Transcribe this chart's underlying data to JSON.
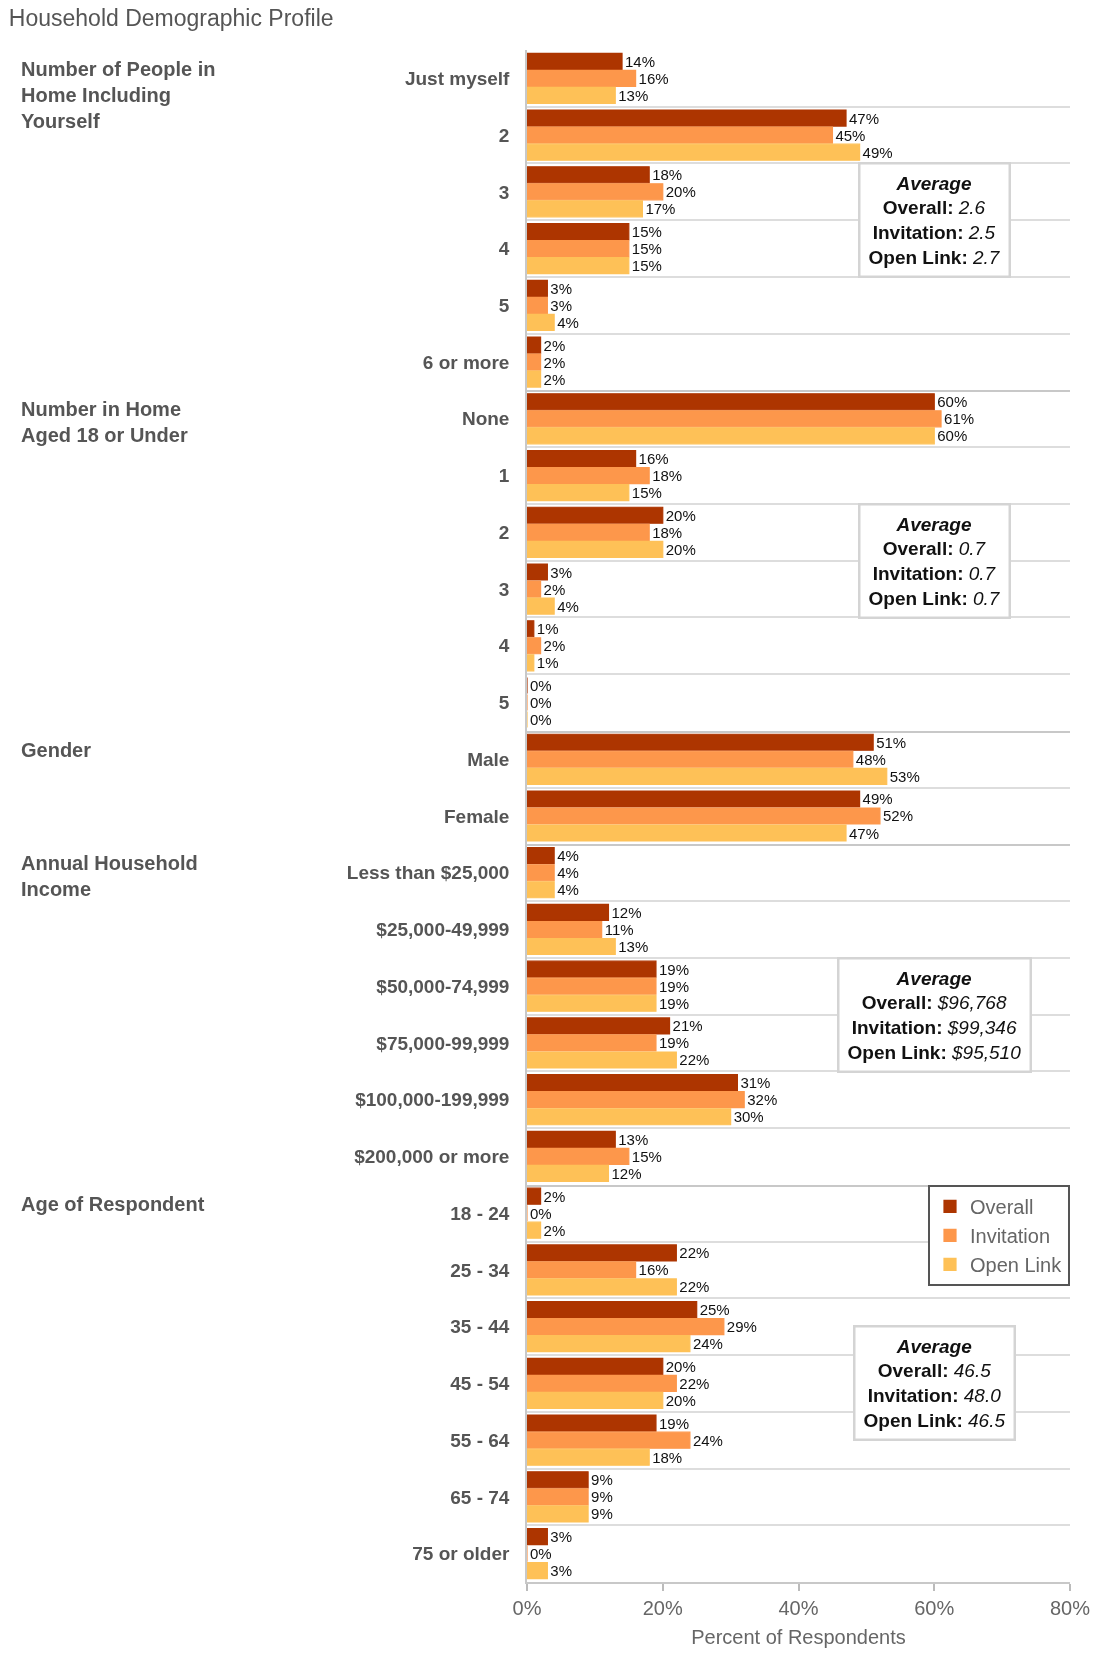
{
  "chart_data": [
    {
      "type": "bar",
      "orientation": "horizontal",
      "title": "Household Demographic Profile",
      "ylabel": "Number of People in Home Including Yourself",
      "categories": [
        "Just myself",
        "2",
        "3",
        "4",
        "5",
        "6 or more"
      ],
      "series": [
        {
          "color": "#ad3500",
          "values": [
            14,
            47,
            18,
            15,
            3,
            2
          ],
          "value_labels": [
            "14%",
            "47%",
            "18%",
            "15%",
            "3%",
            "2%"
          ]
        },
        {
          "color": "#fd974b",
          "values": [
            16,
            45,
            20,
            15,
            3,
            2
          ],
          "value_labels": [
            "16%",
            "45%",
            "20%",
            "15%",
            "3%",
            "2%"
          ]
        },
        {
          "color": "#fec157",
          "values": [
            13,
            49,
            17,
            15,
            4,
            2
          ],
          "value_labels": [
            "13%",
            "49%",
            "17%",
            "15%",
            "4%",
            "2%"
          ]
        }
      ],
      "xlim": [
        0,
        80
      ],
      "tick_labels": "y",
      "grid": "y",
      "annotations": [
        "Average\nOverall: 2.6\nInvitation: 2.5\nOpen Link: 2.7"
      ]
    },
    {
      "type": "bar",
      "orientation": "horizontal",
      "ylabel": "Number in Home Aged 18 or Under",
      "categories": [
        "None",
        "1",
        "2",
        "3",
        "4",
        "5"
      ],
      "series": [
        {
          "color": "#ad3500",
          "values": [
            60,
            16,
            20,
            3,
            1,
            0
          ],
          "value_labels": [
            "60%",
            "16%",
            "20%",
            "3%",
            "1%",
            "0%"
          ]
        },
        {
          "color": "#fd974b",
          "values": [
            61,
            18,
            18,
            2,
            2,
            0
          ],
          "value_labels": [
            "61%",
            "18%",
            "18%",
            "2%",
            "2%",
            "0%"
          ]
        },
        {
          "color": "#fec157",
          "values": [
            60,
            15,
            20,
            4,
            1,
            0
          ],
          "value_labels": [
            "60%",
            "15%",
            "20%",
            "4%",
            "1%",
            "0%"
          ]
        }
      ],
      "xlim": [
        0,
        80
      ],
      "tick_labels": "y",
      "grid": "y",
      "annotations": [
        "Average\nOverall: 0.7\nInvitation: 0.7\nOpen Link: 0.7"
      ]
    },
    {
      "type": "bar",
      "orientation": "horizontal",
      "ylabel": "Gender",
      "categories": [
        "Male",
        "Female"
      ],
      "series": [
        {
          "color": "#ad3500",
          "values": [
            51,
            49
          ],
          "value_labels": [
            "51%",
            "49%"
          ]
        },
        {
          "color": "#fd974b",
          "values": [
            48,
            52
          ],
          "value_labels": [
            "48%",
            "52%"
          ]
        },
        {
          "color": "#fec157",
          "values": [
            53,
            47
          ],
          "value_labels": [
            "53%",
            "47%"
          ]
        }
      ],
      "xlim": [
        0,
        80
      ],
      "tick_labels": "y",
      "grid": "y"
    },
    {
      "type": "bar",
      "orientation": "horizontal",
      "ylabel": "Annual Household Income",
      "categories": [
        "Less than $25,000",
        "$25,000-49,999",
        "$50,000-74,999",
        "$75,000-99,999",
        "$100,000-199,999",
        "$200,000 or more"
      ],
      "series": [
        {
          "color": "#ad3500",
          "values": [
            4,
            12,
            19,
            21,
            31,
            13
          ],
          "value_labels": [
            "4%",
            "12%",
            "19%",
            "21%",
            "31%",
            "13%"
          ]
        },
        {
          "color": "#fd974b",
          "values": [
            4,
            11,
            19,
            19,
            32,
            15
          ],
          "value_labels": [
            "4%",
            "11%",
            "19%",
            "19%",
            "32%",
            "15%"
          ]
        },
        {
          "color": "#fec157",
          "values": [
            4,
            13,
            19,
            22,
            30,
            12
          ],
          "value_labels": [
            "4%",
            "13%",
            "19%",
            "22%",
            "30%",
            "12%"
          ]
        }
      ],
      "xlim": [
        0,
        80
      ],
      "tick_labels": "y",
      "grid": "y",
      "annotations": [
        "Average\nOverall: $96,768\nInvitation: $99,346\nOpen Link: $95,510"
      ]
    },
    {
      "type": "bar",
      "orientation": "horizontal",
      "ylabel": "Age of Respondent",
      "xlabel": "Percent of Respondents",
      "categories": [
        "18 - 24",
        "25 - 34",
        "35 - 44",
        "45 - 54",
        "55 - 64",
        "65 - 74",
        "75 or older"
      ],
      "series": [
        {
          "name": "Overall",
          "color": "#ad3500",
          "values": [
            2,
            22,
            25,
            20,
            19,
            9,
            3
          ],
          "value_labels": [
            "2%",
            "22%",
            "25%",
            "20%",
            "19%",
            "9%",
            "3%"
          ]
        },
        {
          "name": "Invitation",
          "color": "#fd974b",
          "values": [
            0,
            16,
            29,
            22,
            24,
            9,
            0
          ],
          "value_labels": [
            "0%",
            "16%",
            "29%",
            "22%",
            "24%",
            "9%",
            "0%"
          ]
        },
        {
          "name": "Open Link",
          "color": "#fec157",
          "values": [
            2,
            22,
            24,
            20,
            18,
            9,
            3
          ],
          "value_labels": [
            "2%",
            "22%",
            "24%",
            "20%",
            "18%",
            "9%",
            "3%"
          ]
        }
      ],
      "xlim": [
        0,
        80
      ],
      "xticks": [
        {
          "value": 0,
          "label": "0%"
        },
        {
          "value": 20,
          "label": "20%"
        },
        {
          "value": 40,
          "label": "40%"
        },
        {
          "value": 60,
          "label": "60%"
        },
        {
          "value": 80,
          "label": "80%"
        }
      ],
      "grid": "y",
      "legend": "top right",
      "annotations": [
        "Average\nOverall: 46.5\nInvitation: 48.0\nOpen Link: 46.5"
      ]
    }
  ]
}
